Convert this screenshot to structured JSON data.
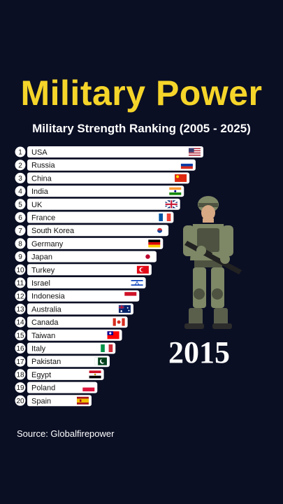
{
  "header": {
    "title": "Military Power",
    "subtitle": "Military Strength Ranking (2005 - 2025)"
  },
  "year": "2015",
  "source": "Source: Globalfirepower",
  "chart_data": {
    "type": "bar",
    "orientation": "horizontal",
    "title": "Military Strength Ranking (2005 - 2025)",
    "categories": [
      "USA",
      "Russia",
      "China",
      "India",
      "UK",
      "France",
      "South Korea",
      "Germany",
      "Japan",
      "Turkey",
      "Israel",
      "Indonesia",
      "Australia",
      "Canada",
      "Taiwan",
      "Italy",
      "Pakistan",
      "Egypt",
      "Poland",
      "Spain"
    ],
    "ranks": [
      1,
      2,
      3,
      4,
      5,
      6,
      7,
      8,
      9,
      10,
      11,
      12,
      13,
      14,
      15,
      16,
      17,
      18,
      19,
      20
    ],
    "flags": [
      "us-flag-icon",
      "russia-flag-icon",
      "china-flag-icon",
      "india-flag-icon",
      "uk-flag-icon",
      "france-flag-icon",
      "south-korea-flag-icon",
      "germany-flag-icon",
      "japan-flag-icon",
      "turkey-flag-icon",
      "israel-flag-icon",
      "indonesia-flag-icon",
      "australia-flag-icon",
      "canada-flag-icon",
      "taiwan-flag-icon",
      "italy-flag-icon",
      "pakistan-flag-icon",
      "egypt-flag-icon",
      "poland-flag-icon",
      "spain-flag-icon"
    ],
    "values": [
      1.0,
      0.956,
      0.921,
      0.89,
      0.868,
      0.831,
      0.802,
      0.771,
      0.734,
      0.706,
      0.673,
      0.636,
      0.603,
      0.57,
      0.538,
      0.501,
      0.468,
      0.435,
      0.398,
      0.365
    ],
    "xlim": [
      0,
      1
    ],
    "grid": false,
    "legend": "none",
    "colors": {
      "background": "#0b0f24",
      "bar": "#ffffff",
      "rank_badge": "#ffffff",
      "title": "#f6d52a"
    }
  }
}
